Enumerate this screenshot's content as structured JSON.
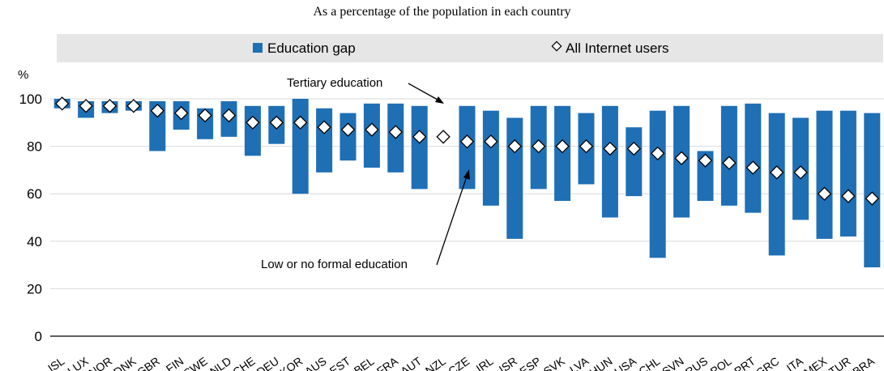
{
  "chart_data": {
    "type": "bar",
    "subtitle": "As a percentage of the population in each country",
    "ylabel": "%",
    "ylim": [
      0,
      100
    ],
    "yticks": [
      0,
      20,
      40,
      60,
      80,
      100
    ],
    "grid": true,
    "legend": {
      "placement": "top",
      "gap_label": "Education gap",
      "marker_label": "All Internet users"
    },
    "annotations": {
      "tertiary": "Tertiary education",
      "low": "Low or no formal education"
    },
    "colors": {
      "bar": "#1f6fb5",
      "marker_fill": "#ffffff",
      "marker_stroke": "#000000",
      "grid": "#d9d9d9",
      "legend_bg": "#e6e6e6"
    },
    "categories": [
      "ISL",
      "LUX",
      "NOR",
      "DNK",
      "GBR",
      "FIN",
      "SWE",
      "NLD",
      "CHE",
      "DEU",
      "KOR",
      "AUS",
      "EST",
      "BEL",
      "FRA",
      "AUT",
      "NZL",
      "CZE",
      "IRL",
      "ISR",
      "ESP",
      "SVK",
      "LVA",
      "HUN",
      "USA",
      "CHL",
      "SVN",
      "RUS",
      "POL",
      "PRT",
      "GRC",
      "ITA",
      "MEX",
      "TUR",
      "BRA"
    ],
    "series": [
      {
        "name": "Tertiary education",
        "values": [
          100,
          99,
          99,
          99,
          99,
          99,
          96,
          99,
          97,
          97,
          100,
          96,
          94,
          98,
          98,
          97,
          null,
          97,
          95,
          92,
          97,
          97,
          94,
          97,
          88,
          95,
          97,
          78,
          97,
          98,
          94,
          92,
          95,
          95,
          94
        ]
      },
      {
        "name": "Low or no formal education",
        "values": [
          96,
          92,
          94,
          95,
          78,
          87,
          83,
          84,
          76,
          81,
          60,
          69,
          74,
          71,
          69,
          62,
          null,
          62,
          55,
          41,
          62,
          57,
          64,
          50,
          59,
          33,
          50,
          57,
          55,
          52,
          34,
          49,
          41,
          42,
          29
        ]
      },
      {
        "name": "All Internet users",
        "values": [
          98,
          97,
          97,
          97,
          95,
          94,
          93,
          93,
          90,
          90,
          90,
          88,
          87,
          87,
          86,
          84,
          84,
          82,
          82,
          80,
          80,
          80,
          80,
          79,
          79,
          77,
          75,
          74,
          73,
          71,
          69,
          69,
          60,
          59,
          58
        ]
      }
    ]
  }
}
